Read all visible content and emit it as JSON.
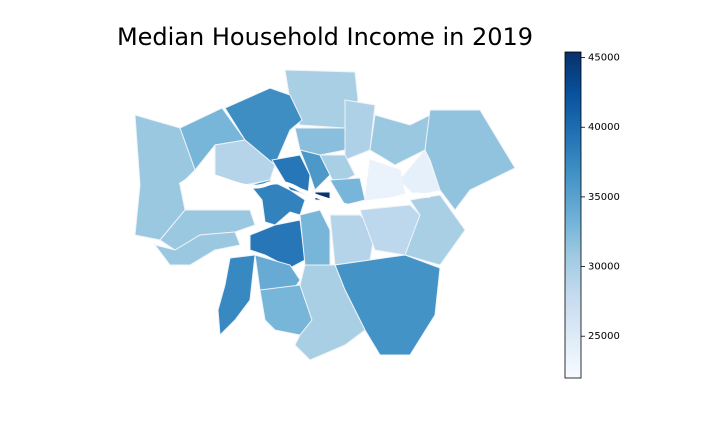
{
  "chart_data": {
    "type": "choropleth",
    "title": "Median Household Income in 2019",
    "colormap": "Blues",
    "values": [
      30000,
      37000,
      33000,
      31000,
      29000,
      32000,
      29500,
      31000,
      31500,
      24000,
      23500,
      39000,
      36000,
      30000,
      33000,
      45000,
      38000,
      31000,
      31000,
      39000,
      37500,
      34000,
      33000,
      33000,
      29000,
      28500,
      30000,
      36500,
      30000
    ],
    "ylim": [
      22000,
      45400
    ],
    "yticks": [
      25000,
      30000,
      35000,
      40000,
      45000
    ]
  }
}
